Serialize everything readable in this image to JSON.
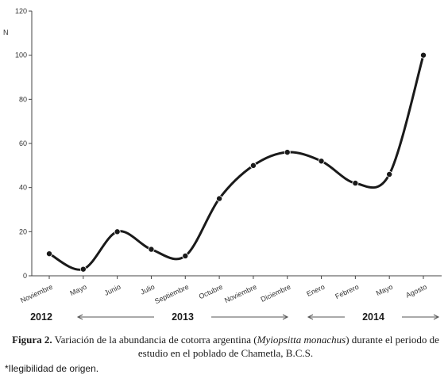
{
  "chart_data": {
    "type": "line",
    "ylabel": "N",
    "ylim": [
      0,
      120
    ],
    "yticks": [
      "0",
      "20",
      "40",
      "60",
      "80",
      "100",
      "120"
    ],
    "categories": [
      "Noviembre",
      "Mayo",
      "Junio",
      "Julio",
      "Septiembre",
      "Octubre",
      "Noviembre",
      "Diciembre",
      "Enero",
      "Febrero",
      "Mayo",
      "Agosto"
    ],
    "values": [
      10,
      3,
      20,
      12,
      9,
      35,
      50,
      56,
      52,
      42,
      46,
      100
    ],
    "smooth": true,
    "grid": false,
    "legend": "none",
    "line_color": "#1a1a1a",
    "years": [
      {
        "label": "2012",
        "arrow": false
      },
      {
        "label": "2013",
        "arrow": true
      },
      {
        "label": "2014",
        "arrow": true
      }
    ]
  },
  "caption": {
    "figure_label": "Figura 2.",
    "text_before": " Variación de la abundancia de cotorra argentina (",
    "species": "Myiopsitta monachus",
    "text_after": ") durante el periodo de estudio en el poblado de Chametla, B.C.S."
  },
  "note": "*Ilegibilidad de origen."
}
